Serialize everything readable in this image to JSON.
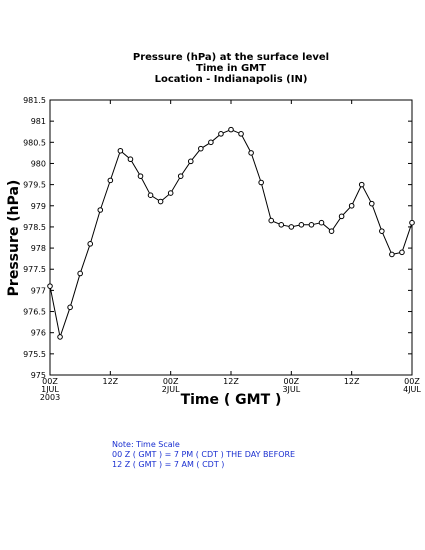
{
  "chart_data": {
    "type": "line",
    "title": [
      "Pressure (hPa) at the surface level",
      "Time in GMT",
      "Location - Indianapolis (IN)"
    ],
    "xlabel": "Time ( GMT )",
    "ylabel": "Pressure (hPa)",
    "x": [
      0,
      2,
      4,
      6,
      8,
      10,
      12,
      14,
      16,
      18,
      20,
      22,
      24,
      26,
      28,
      30,
      32,
      34,
      36,
      38,
      40,
      42,
      44,
      46,
      48,
      50,
      52,
      54,
      56,
      58,
      60,
      62,
      64,
      66,
      68,
      70,
      72
    ],
    "series": [
      {
        "name": "Pressure",
        "color": "#000000",
        "values": [
          977.1,
          975.9,
          976.6,
          977.4,
          978.1,
          978.9,
          979.6,
          980.3,
          980.1,
          979.7,
          979.25,
          979.1,
          979.3,
          979.7,
          980.05,
          980.35,
          980.5,
          980.7,
          980.8,
          980.7,
          980.25,
          979.55,
          978.65,
          978.55,
          978.5,
          978.55,
          978.55,
          978.6,
          978.4,
          978.75,
          979.0,
          979.5,
          979.05,
          978.4,
          977.85,
          977.9,
          978.6
        ]
      }
    ],
    "xlim": [
      0,
      72
    ],
    "xticks": [
      {
        "value": 0,
        "label": [
          "00Z",
          "1JUL",
          "2003"
        ]
      },
      {
        "value": 12,
        "label": [
          "12Z"
        ]
      },
      {
        "value": 24,
        "label": [
          "00Z",
          "2JUL"
        ]
      },
      {
        "value": 36,
        "label": [
          "12Z"
        ]
      },
      {
        "value": 48,
        "label": [
          "00Z",
          "3JUL"
        ]
      },
      {
        "value": 60,
        "label": [
          "12Z"
        ]
      },
      {
        "value": 72,
        "label": [
          "00Z",
          "4JUL"
        ]
      }
    ],
    "ylim": [
      975,
      981.5
    ],
    "yticks": [
      975,
      975.5,
      976,
      976.5,
      977,
      977.5,
      978,
      978.5,
      979,
      979.5,
      980,
      980.5,
      981,
      981.5
    ],
    "note": [
      "Note: Time Scale",
      "00 Z ( GMT ) = 7 PM ( CDT ) THE DAY BEFORE",
      "12 Z ( GMT ) = 7 AM ( CDT )"
    ],
    "note_color": "#1a2fd0"
  }
}
